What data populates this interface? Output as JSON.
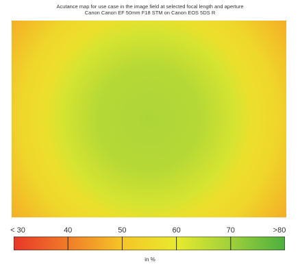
{
  "chart_data": {
    "type": "heatmap",
    "title": "Acutance map for use case in the image field at selected focal length and aperture",
    "subtitle": "Canon Canon EF 50mm F18 STM on Canon EOS 5DS R",
    "center_value": 68,
    "edge_value": 55,
    "corner_value": 47,
    "color_scale": {
      "ticks": [
        "< 30",
        "40",
        "50",
        "60",
        "70",
        ">80"
      ],
      "tick_values": [
        30,
        40,
        50,
        60,
        70,
        80
      ],
      "colors": [
        "#e8372a",
        "#f07c28",
        "#f5c527",
        "#e8ea2e",
        "#9fd03a",
        "#4caf3f"
      ],
      "unit_label": "in %"
    }
  }
}
